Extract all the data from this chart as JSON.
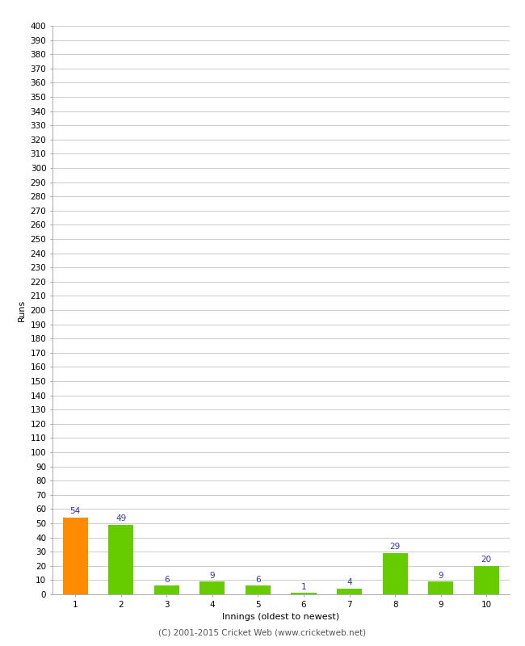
{
  "categories": [
    "1",
    "2",
    "3",
    "4",
    "5",
    "6",
    "7",
    "8",
    "9",
    "10"
  ],
  "values": [
    54,
    49,
    6,
    9,
    6,
    1,
    4,
    29,
    9,
    20
  ],
  "bar_colors": [
    "#ff8c00",
    "#66cc00",
    "#66cc00",
    "#66cc00",
    "#66cc00",
    "#66cc00",
    "#66cc00",
    "#66cc00",
    "#66cc00",
    "#66cc00"
  ],
  "xlabel": "Innings (oldest to newest)",
  "ylabel": "Runs",
  "ylim": [
    0,
    400
  ],
  "ytick_step": 10,
  "label_color": "#3333aa",
  "label_fontsize": 7.5,
  "axis_fontsize": 7.5,
  "xlabel_fontsize": 8,
  "ylabel_fontsize": 8,
  "background_color": "#ffffff",
  "plot_bg_color": "#ffffff",
  "grid_color": "#cccccc",
  "footer": "(C) 2001-2015 Cricket Web (www.cricketweb.net)",
  "footer_fontsize": 7.5,
  "bar_width": 0.55
}
